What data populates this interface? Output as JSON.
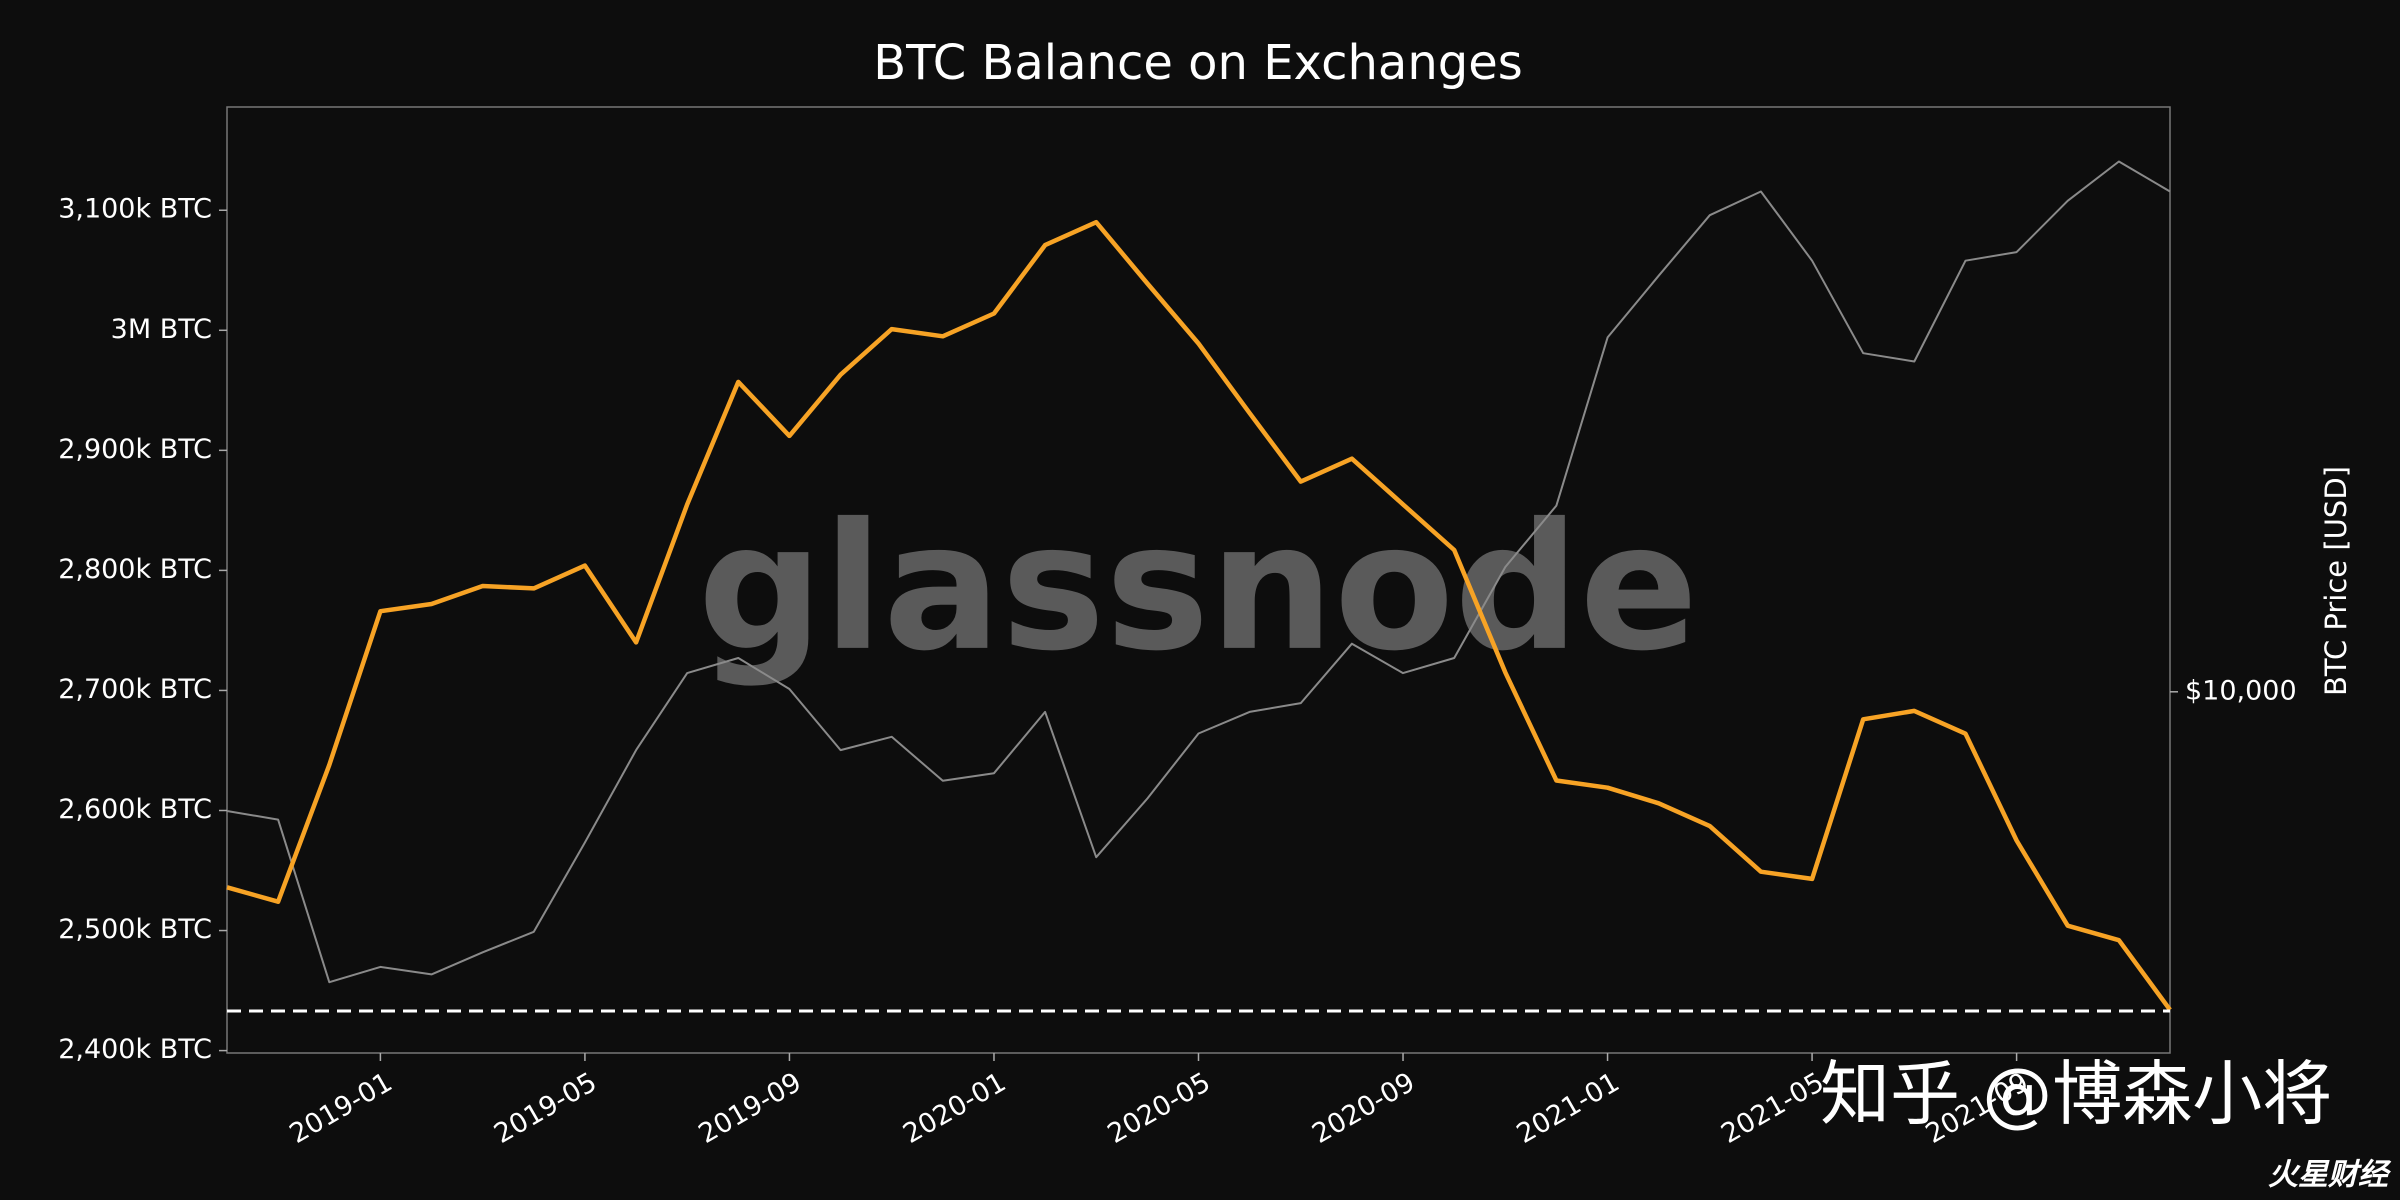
{
  "chart_data": {
    "type": "line",
    "title": "BTC Balance on Exchanges",
    "y2_label": "BTC Price [USD]",
    "watermark": "glassnode",
    "overlay_text": "知乎 @博森小将",
    "corner_text": "火星财经",
    "x": [
      "2018-10",
      "2018-11",
      "2018-12",
      "2019-01",
      "2019-02",
      "2019-03",
      "2019-04",
      "2019-05",
      "2019-06",
      "2019-07",
      "2019-08",
      "2019-09",
      "2019-10",
      "2019-11",
      "2019-12",
      "2020-01",
      "2020-02",
      "2020-03",
      "2020-04",
      "2020-05",
      "2020-06",
      "2020-07",
      "2020-08",
      "2020-09",
      "2020-10",
      "2020-11",
      "2020-12",
      "2021-01",
      "2021-02",
      "2021-03",
      "2021-04",
      "2021-05",
      "2021-06",
      "2021-07",
      "2021-08",
      "2021-09",
      "2021-10",
      "2021-11",
      "2021-12"
    ],
    "xlim": [
      "2018-10",
      "2021-12"
    ],
    "xticks": [
      "2019-01",
      "2019-05",
      "2019-09",
      "2020-01",
      "2020-05",
      "2020-09",
      "2021-01",
      "2021-05",
      "2021-09"
    ],
    "series": [
      {
        "name": "BTC Price [USD]",
        "color": "#8a8a8a",
        "axis": "y2",
        "values": [
          6500,
          6300,
          3500,
          3700,
          3600,
          3900,
          4200,
          5800,
          8100,
          10700,
          11300,
          10100,
          8100,
          8500,
          7250,
          7450,
          9300,
          5500,
          6800,
          8600,
          9300,
          9600,
          11900,
          10700,
          11300,
          15700,
          19600,
          36000,
          45000,
          56000,
          61000,
          47500,
          34000,
          33000,
          47500,
          49000,
          59000,
          68000,
          61000
        ]
      },
      {
        "name": "BTC Balance on Exchanges",
        "color": "#f7a325",
        "values": [
          2536000,
          2524000,
          2638000,
          2766000,
          2772000,
          2787000,
          2785000,
          2804000,
          2740000,
          2855000,
          2957000,
          2912000,
          2963000,
          3001000,
          2995000,
          3014000,
          3071000,
          3090000,
          3039000,
          2989000,
          2931000,
          2874000,
          2893000,
          2855000,
          2817000,
          2715000,
          2625000,
          2619000,
          2606000,
          2587000,
          2549000,
          2543000,
          2676000,
          2683000,
          2664000,
          2575000,
          2504000,
          2492000,
          2434000
        ]
      }
    ],
    "reference_line": 2433000,
    "ylim": [
      2398000,
      3186000
    ],
    "yticks": [
      {
        "value": 2400000,
        "label": "2,400k BTC"
      },
      {
        "value": 2500000,
        "label": "2,500k BTC"
      },
      {
        "value": 2600000,
        "label": "2,600k BTC"
      },
      {
        "value": 2700000,
        "label": "2,700k BTC"
      },
      {
        "value": 2800000,
        "label": "2,800k BTC"
      },
      {
        "value": 2900000,
        "label": "2,900k BTC"
      },
      {
        "value": 3000000,
        "label": "3M BTC"
      },
      {
        "value": 3100000,
        "label": "3,100k BTC"
      }
    ],
    "y2lim": [
      2710,
      82800
    ],
    "y2ticks": [
      {
        "value": 10000,
        "label": "$10,000"
      }
    ],
    "y2_log": true,
    "background": "#0d0d0d"
  }
}
